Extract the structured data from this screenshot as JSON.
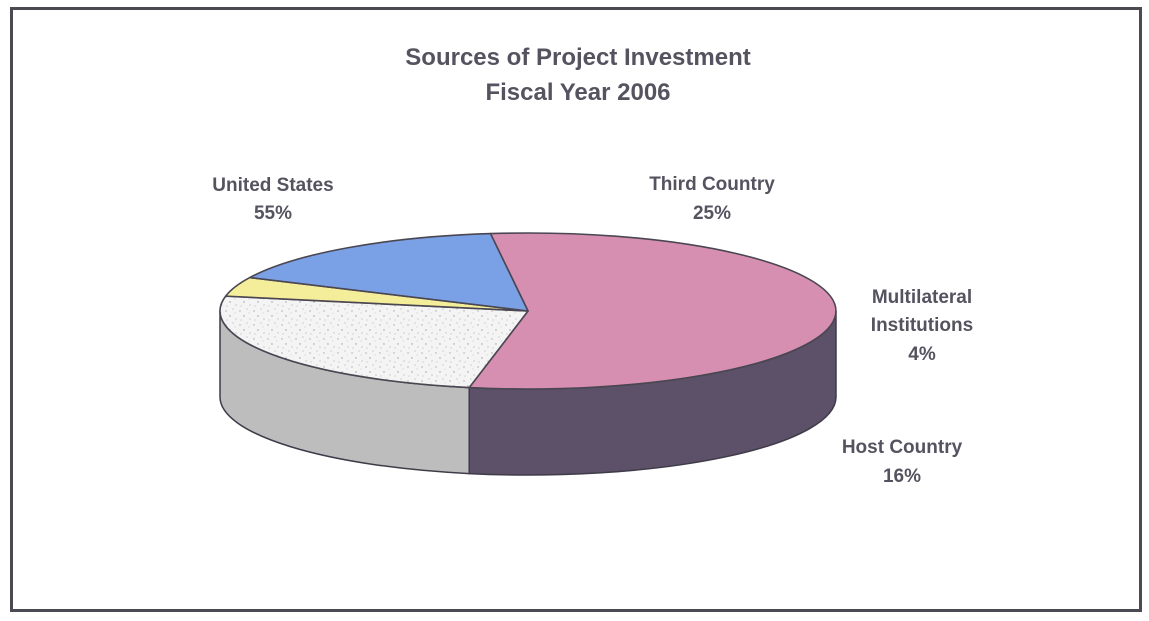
{
  "chart_data": {
    "type": "pie",
    "title": "Sources of Project Investment",
    "subtitle": "Fiscal Year 2006",
    "slices": [
      {
        "label": "United States",
        "value": 55,
        "value_label": "55%",
        "color": "#d68fb1",
        "side_color": "#5c5169"
      },
      {
        "label": "Third Country",
        "value": 25,
        "value_label": "25%",
        "color": "#f3f3f3",
        "side_color": "#bdbdbd"
      },
      {
        "label_lines": [
          "Multilateral",
          "Institutions"
        ],
        "value": 4,
        "value_label": "4%",
        "color": "#f4ee9a",
        "side_color": "#8f8a4f"
      },
      {
        "label": "Host Country",
        "value": 16,
        "value_label": "16%",
        "color": "#7aa0e6",
        "side_color": "#4a6090"
      }
    ],
    "style": "3d-pie",
    "legend": "none"
  }
}
